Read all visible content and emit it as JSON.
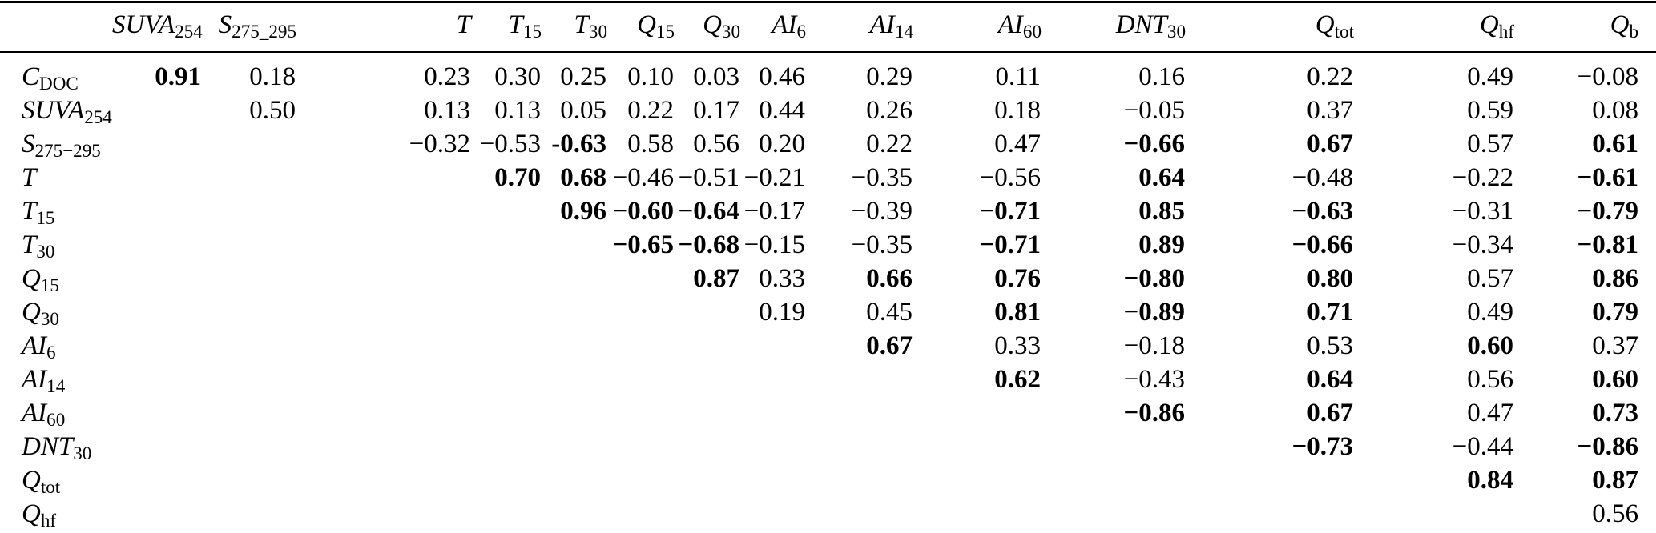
{
  "page": {
    "background_color": "#ffffff",
    "text_color": "#000000",
    "bold_meaning": "significant correlation (bold)"
  },
  "table": {
    "kind": "correlation-matrix",
    "columns": [
      {
        "main": "SUVA",
        "sub": "254"
      },
      {
        "main": "S",
        "sub": "275_295"
      },
      {
        "main": "T",
        "sub": ""
      },
      {
        "main": "T",
        "sub": "15"
      },
      {
        "main": "T",
        "sub": "30"
      },
      {
        "main": "Q",
        "sub": "15"
      },
      {
        "main": "Q",
        "sub": "30"
      },
      {
        "main": "AI",
        "sub": "6"
      },
      {
        "main": "AI",
        "sub": "14"
      },
      {
        "main": "AI",
        "sub": "60"
      },
      {
        "main": "DNT",
        "sub": "30"
      },
      {
        "main": "Q",
        "sub": "tot"
      },
      {
        "main": "Q",
        "sub": "hf"
      },
      {
        "main": "Q",
        "sub": "b"
      }
    ],
    "rows": [
      {
        "label": {
          "main": "C",
          "sub": "DOC"
        },
        "cells": [
          {
            "text": "0.91",
            "bold": true
          },
          {
            "text": "0.18"
          },
          {
            "text": "0.23"
          },
          {
            "text": "0.30"
          },
          {
            "text": "0.25"
          },
          {
            "text": "0.10"
          },
          {
            "text": "0.03"
          },
          {
            "text": "0.46"
          },
          {
            "text": "0.29"
          },
          {
            "text": "0.11"
          },
          {
            "text": "0.16"
          },
          {
            "text": "0.22"
          },
          {
            "text": "0.49"
          },
          {
            "text": "−0.08"
          }
        ]
      },
      {
        "label": {
          "main": "SUVA",
          "sub": "254"
        },
        "cells": [
          null,
          {
            "text": "0.50"
          },
          {
            "text": "0.13"
          },
          {
            "text": "0.13"
          },
          {
            "text": "0.05"
          },
          {
            "text": "0.22"
          },
          {
            "text": "0.17"
          },
          {
            "text": "0.44"
          },
          {
            "text": "0.26"
          },
          {
            "text": "0.18"
          },
          {
            "text": "−0.05"
          },
          {
            "text": "0.37"
          },
          {
            "text": "0.59"
          },
          {
            "text": "0.08"
          }
        ]
      },
      {
        "label": {
          "main": "S",
          "sub": "275−295"
        },
        "cells": [
          null,
          null,
          {
            "text": "−0.32"
          },
          {
            "text": "−0.53"
          },
          {
            "text": "-0.63",
            "bold": true
          },
          {
            "text": "0.58"
          },
          {
            "text": "0.56"
          },
          {
            "text": "0.20"
          },
          {
            "text": "0.22"
          },
          {
            "text": "0.47"
          },
          {
            "text": "−0.66",
            "bold": true
          },
          {
            "text": "0.67",
            "bold": true
          },
          {
            "text": "0.57"
          },
          {
            "text": "0.61",
            "bold": true
          }
        ]
      },
      {
        "label": {
          "main": "T",
          "sub": ""
        },
        "cells": [
          null,
          null,
          null,
          {
            "text": "0.70",
            "bold": true
          },
          {
            "text": "0.68",
            "bold": true
          },
          {
            "text": "−0.46"
          },
          {
            "text": "−0.51"
          },
          {
            "text": "−0.21"
          },
          {
            "text": "−0.35"
          },
          {
            "text": "−0.56"
          },
          {
            "text": "0.64",
            "bold": true
          },
          {
            "text": "−0.48"
          },
          {
            "text": "−0.22"
          },
          {
            "text": "−0.61",
            "bold": true
          }
        ]
      },
      {
        "label": {
          "main": "T",
          "sub": "15"
        },
        "cells": [
          null,
          null,
          null,
          null,
          {
            "text": "0.96",
            "bold": true
          },
          {
            "text": "−0.60",
            "bold": true
          },
          {
            "text": "−0.64",
            "bold": true
          },
          {
            "text": "−0.17"
          },
          {
            "text": "−0.39"
          },
          {
            "text": "−0.71",
            "bold": true
          },
          {
            "text": "0.85",
            "bold": true
          },
          {
            "text": "−0.63",
            "bold": true
          },
          {
            "text": "−0.31"
          },
          {
            "text": "−0.79",
            "bold": true
          }
        ]
      },
      {
        "label": {
          "main": "T",
          "sub": "30"
        },
        "cells": [
          null,
          null,
          null,
          null,
          null,
          {
            "text": "−0.65",
            "bold": true
          },
          {
            "text": "−0.68",
            "bold": true
          },
          {
            "text": "−0.15"
          },
          {
            "text": "−0.35"
          },
          {
            "text": "−0.71",
            "bold": true
          },
          {
            "text": "0.89",
            "bold": true
          },
          {
            "text": "−0.66",
            "bold": true
          },
          {
            "text": "−0.34"
          },
          {
            "text": "−0.81",
            "bold": true
          }
        ]
      },
      {
        "label": {
          "main": "Q",
          "sub": "15"
        },
        "cells": [
          null,
          null,
          null,
          null,
          null,
          null,
          {
            "text": "0.87",
            "bold": true
          },
          {
            "text": "0.33"
          },
          {
            "text": "0.66",
            "bold": true
          },
          {
            "text": "0.76",
            "bold": true
          },
          {
            "text": "−0.80",
            "bold": true
          },
          {
            "text": "0.80",
            "bold": true
          },
          {
            "text": "0.57"
          },
          {
            "text": "0.86",
            "bold": true
          }
        ]
      },
      {
        "label": {
          "main": "Q",
          "sub": "30"
        },
        "cells": [
          null,
          null,
          null,
          null,
          null,
          null,
          null,
          {
            "text": "0.19"
          },
          {
            "text": "0.45"
          },
          {
            "text": "0.81",
            "bold": true
          },
          {
            "text": "−0.89",
            "bold": true
          },
          {
            "text": "0.71",
            "bold": true
          },
          {
            "text": "0.49"
          },
          {
            "text": "0.79",
            "bold": true
          }
        ]
      },
      {
        "label": {
          "main": "AI",
          "sub": "6"
        },
        "cells": [
          null,
          null,
          null,
          null,
          null,
          null,
          null,
          null,
          {
            "text": "0.67",
            "bold": true
          },
          {
            "text": "0.33"
          },
          {
            "text": "−0.18"
          },
          {
            "text": "0.53"
          },
          {
            "text": "0.60",
            "bold": true
          },
          {
            "text": "0.37"
          }
        ]
      },
      {
        "label": {
          "main": "AI",
          "sub": "14"
        },
        "cells": [
          null,
          null,
          null,
          null,
          null,
          null,
          null,
          null,
          null,
          {
            "text": "0.62",
            "bold": true
          },
          {
            "text": "−0.43"
          },
          {
            "text": "0.64",
            "bold": true
          },
          {
            "text": "0.56"
          },
          {
            "text": "0.60",
            "bold": true
          }
        ]
      },
      {
        "label": {
          "main": "AI",
          "sub": "60"
        },
        "cells": [
          null,
          null,
          null,
          null,
          null,
          null,
          null,
          null,
          null,
          null,
          {
            "text": "−0.86",
            "bold": true
          },
          {
            "text": "0.67",
            "bold": true
          },
          {
            "text": "0.47"
          },
          {
            "text": "0.73",
            "bold": true
          }
        ]
      },
      {
        "label": {
          "main": "DNT",
          "sub": "30"
        },
        "cells": [
          null,
          null,
          null,
          null,
          null,
          null,
          null,
          null,
          null,
          null,
          null,
          {
            "text": "−0.73",
            "bold": true
          },
          {
            "text": "−0.44"
          },
          {
            "text": "−0.86",
            "bold": true
          }
        ]
      },
      {
        "label": {
          "main": "Q",
          "sub": "tot"
        },
        "cells": [
          null,
          null,
          null,
          null,
          null,
          null,
          null,
          null,
          null,
          null,
          null,
          null,
          {
            "text": "0.84",
            "bold": true
          },
          {
            "text": "0.87",
            "bold": true
          }
        ]
      },
      {
        "label": {
          "main": "Q",
          "sub": "hf"
        },
        "cells": [
          null,
          null,
          null,
          null,
          null,
          null,
          null,
          null,
          null,
          null,
          null,
          null,
          null,
          {
            "text": "0.56"
          }
        ]
      }
    ]
  }
}
